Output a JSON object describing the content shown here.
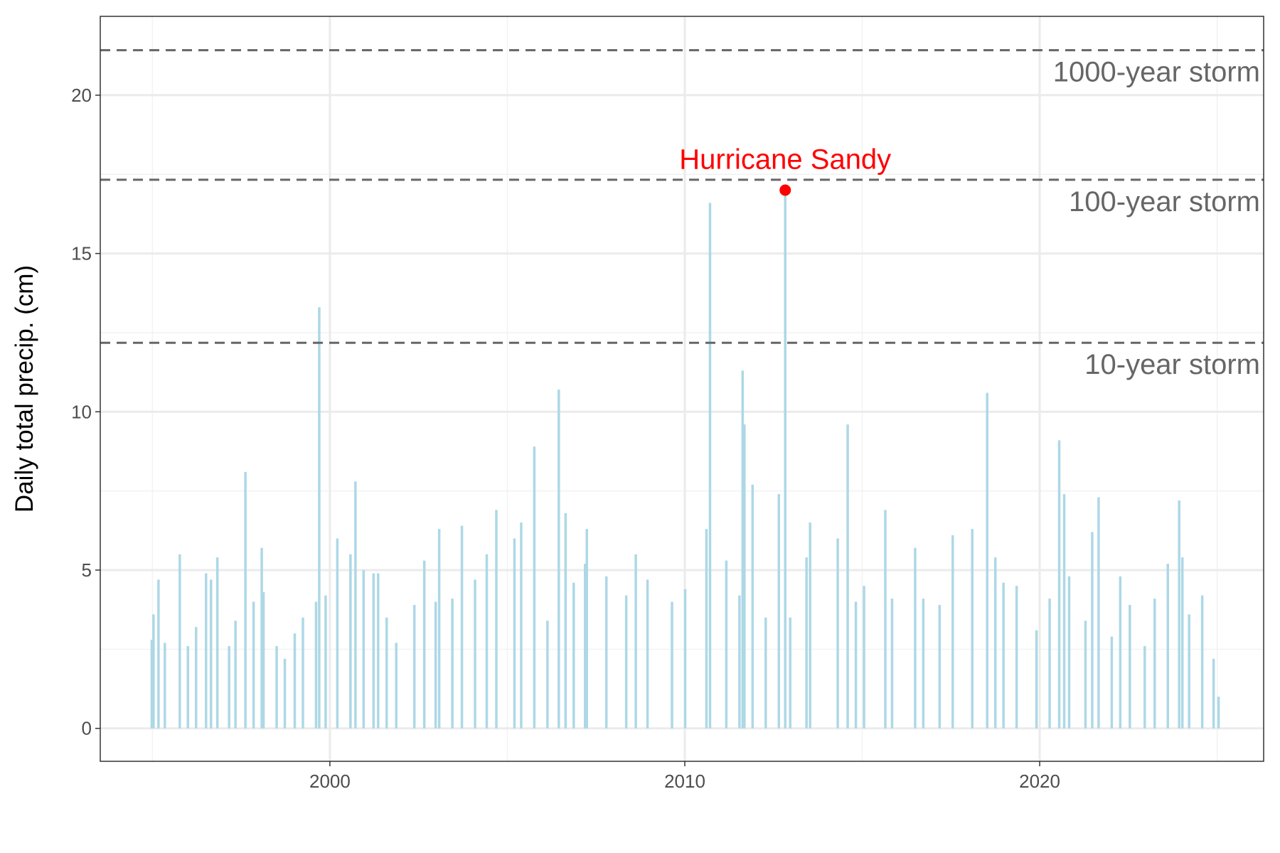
{
  "chart_data": {
    "type": "spike",
    "ylabel": "Daily total precip. (cm)",
    "color": "#add8e6",
    "x": [
      1994.98,
      1995.03,
      1995.17,
      1995.35,
      1995.77,
      1996.0,
      1996.23,
      1996.51,
      1996.65,
      1996.83,
      1997.16,
      1997.34,
      1997.62,
      1997.85,
      1998.08,
      1998.13,
      1998.5,
      1998.73,
      1999.01,
      1999.24,
      1999.61,
      1999.7,
      1999.88,
      2000.21,
      2000.58,
      2000.72,
      2000.95,
      2001.23,
      2001.36,
      2001.6,
      2001.87,
      2002.38,
      2002.66,
      2002.98,
      2003.08,
      2003.45,
      2003.72,
      2004.09,
      2004.42,
      2004.69,
      2005.2,
      2005.39,
      2005.76,
      2006.13,
      2006.45,
      2006.64,
      2006.87,
      2007.19,
      2007.24,
      2007.79,
      2008.35,
      2008.62,
      2008.95,
      2009.64,
      2010.01,
      2010.61,
      2010.71,
      2011.17,
      2011.54,
      2011.63,
      2011.68,
      2011.91,
      2012.28,
      2012.65,
      2012.83,
      2012.97,
      2013.43,
      2013.53,
      2014.31,
      2014.59,
      2014.82,
      2015.05,
      2015.65,
      2015.84,
      2016.49,
      2016.72,
      2017.18,
      2017.55,
      2018.1,
      2018.52,
      2018.75,
      2018.98,
      2019.35,
      2019.91,
      2020.28,
      2020.55,
      2020.69,
      2020.83,
      2021.29,
      2021.48,
      2021.66,
      2022.03,
      2022.27,
      2022.54,
      2022.96,
      2023.24,
      2023.61,
      2023.93,
      2024.02,
      2024.21,
      2024.58,
      2024.9,
      2025.04
    ],
    "values": [
      2.8,
      3.6,
      4.7,
      2.7,
      5.5,
      2.6,
      3.2,
      4.9,
      4.7,
      5.4,
      2.6,
      3.4,
      8.1,
      4.0,
      5.7,
      4.3,
      2.6,
      2.2,
      3.0,
      3.5,
      4.0,
      13.3,
      4.2,
      6.0,
      5.5,
      7.8,
      5.0,
      4.9,
      4.9,
      3.5,
      2.7,
      3.9,
      5.3,
      4.0,
      6.3,
      4.1,
      6.4,
      4.7,
      5.5,
      6.9,
      6.0,
      6.5,
      8.9,
      3.4,
      10.7,
      6.8,
      4.6,
      5.2,
      6.3,
      4.8,
      4.2,
      5.5,
      4.7,
      4.0,
      4.4,
      6.3,
      16.6,
      5.3,
      4.2,
      11.3,
      9.6,
      7.7,
      3.5,
      7.4,
      17.0,
      3.5,
      5.4,
      6.5,
      6.0,
      9.6,
      4.0,
      4.5,
      6.9,
      4.1,
      5.7,
      4.1,
      3.9,
      6.1,
      6.3,
      10.6,
      5.4,
      4.6,
      4.5,
      3.1,
      4.1,
      9.1,
      7.4,
      4.8,
      3.4,
      6.2,
      7.3,
      2.9,
      4.8,
      3.9,
      2.6,
      4.1,
      5.2,
      7.2,
      5.4,
      3.6,
      4.2,
      2.2,
      1.0
    ],
    "xlim": [
      1993.53,
      2026.31
    ],
    "ylim": [
      -1.04,
      22.49
    ],
    "xticks": [
      2000,
      2010,
      2020
    ],
    "yticks": [
      0,
      5,
      10,
      15,
      20
    ],
    "xminorticks": [
      1995,
      2005,
      2015,
      2025
    ],
    "yminorticks": [
      2.5,
      7.5,
      12.5,
      17.5
    ],
    "grid": true,
    "hlines": [
      {
        "value": 12.18,
        "label": "10-year storm"
      },
      {
        "value": 17.33,
        "label": "100-year storm"
      },
      {
        "value": 21.42,
        "label": "1000-year storm"
      }
    ],
    "hline_color": "#666666",
    "highlight": {
      "x": 2012.83,
      "y": 17.0,
      "label": "Hurricane Sandy",
      "color": "#ff0000"
    }
  }
}
